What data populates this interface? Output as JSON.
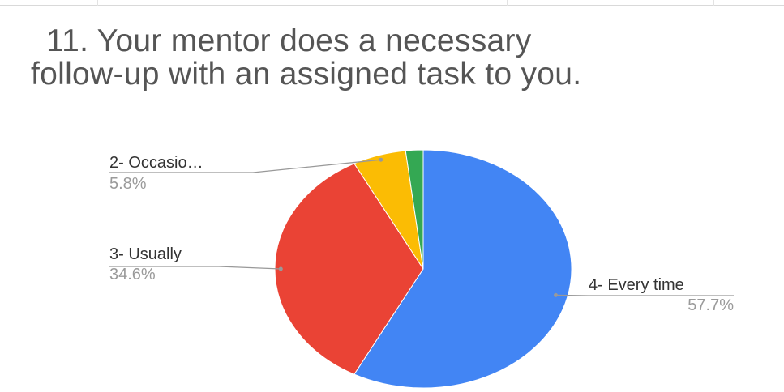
{
  "colors": {
    "every_time": "#4285f4",
    "usually": "#ea4335",
    "occasionally": "#fbbc04",
    "rarely": "#34a853",
    "leader_line": "#999999",
    "label_text": "#333333",
    "value_text": "#9a9a9a",
    "title_text": "#555555"
  },
  "chart_data": {
    "type": "pie",
    "title_line_1": "11. Your mentor does a necessary",
    "title_line_2": "follow-up with an assigned task to you.",
    "slices": [
      {
        "label": "4- Every time",
        "value": 57.7,
        "value_label": "57.7%",
        "color": "#4285f4"
      },
      {
        "label": "3- Usually",
        "value": 34.6,
        "value_label": "34.6%",
        "color": "#ea4335"
      },
      {
        "label": "2- Occasio…",
        "value": 5.8,
        "value_label": "5.8%",
        "color": "#fbbc04"
      },
      {
        "label": "",
        "value": 1.9,
        "value_label": "",
        "color": "#34a853"
      }
    ],
    "start_angle": "12 o'clock",
    "direction": "clockwise",
    "legend": "none"
  }
}
